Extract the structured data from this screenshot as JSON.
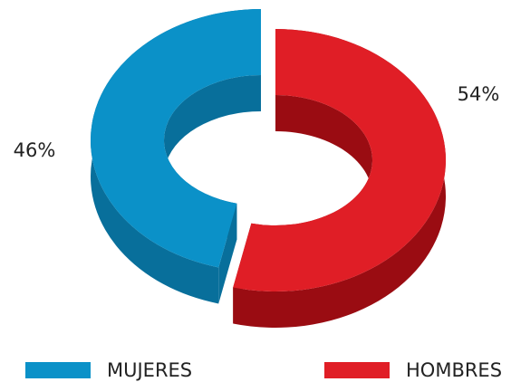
{
  "chart_data": {
    "type": "pie",
    "categories": [
      "MUJERES",
      "HOMBRES"
    ],
    "values": [
      46,
      54
    ],
    "value_labels": [
      "46%",
      "54%"
    ],
    "colors": [
      "#0b91c8",
      "#e01e26"
    ],
    "side_colors": [
      "#086f9b",
      "#9a0c12"
    ]
  }
}
